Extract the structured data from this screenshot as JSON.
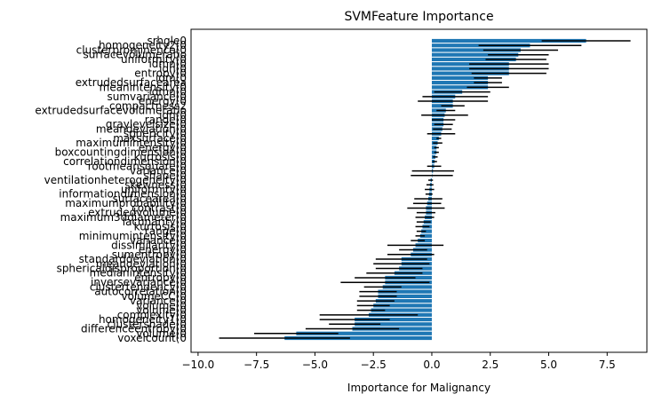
{
  "chart_data": {
    "type": "bar",
    "orientation": "horizontal",
    "title": "SVMFeature Importance",
    "xlabel": "Importance for Malignancy",
    "ylabel": "",
    "xlim": [
      -10.3,
      9.2
    ],
    "xticks": [
      -10.0,
      -7.5,
      -5.0,
      -2.5,
      0.0,
      2.5,
      5.0,
      7.5
    ],
    "xtick_labels": [
      "−10.0",
      "−7.5",
      "−5.0",
      "−2.5",
      "0.0",
      "2.5",
      "5.0",
      "7.5"
    ],
    "bar_color": "#1f77b4",
    "error_color": "#000000",
    "grid": false,
    "categories": [
      "srhgle0",
      "homogeneity2(0",
      "clusterprominence(0",
      "surfacevolumeratio",
      "uniformity(0",
      "idmn(0",
      "idn(0",
      "entropy(0",
      "idm(0",
      "extrudedsurfacearea",
      "meanintensity(0",
      "idmn(0",
      "sumvariance(0",
      "energy(0",
      "compactness2",
      "extrudedsurfacevolumeratio",
      "idn(0",
      "range(0",
      "graylevelsize(0",
      "meandeviation(0",
      "sphericity(0",
      "maxsurface(0",
      "maximumintensity(0",
      "energy(0",
      "boxcountingdimension(0",
      "kurtosis(0",
      "correlationdimension(0",
      "rootmeansquare(0",
      "variance(0",
      "shape(0",
      "ventilationheterogeneity(0",
      "skewness(0",
      "uniformity(0",
      "informationdimension(0",
      "surfacearea(0",
      "maximumprobability(0",
      "contrast(0",
      "extrudedvolume(0",
      "maximum3ddiameter(0",
      "lacunarity(0",
      "kurtosis(0",
      "range(0",
      "minimumintensity(0",
      "variance(0",
      "dissimilarity(0",
      "energy(0",
      "sumentropy(0",
      "standarddeviation(0",
      "meandeviation(0",
      "sphericaldisproportion(0",
      "medianintensity(0",
      "entropy(0",
      "inversevariance(0",
      "clustertendency(0",
      "autocorrelation(0",
      "volumeCC(0",
      "variance(0",
      "volume(0",
      "volume(0",
      "complexity(0",
      "homogeneity1(0",
      "clustershade(0",
      "differenceentropy(0",
      "volume(0",
      "voxelcount(0"
    ],
    "values": [
      6.6,
      4.2,
      3.8,
      3.7,
      3.6,
      3.3,
      3.3,
      3.3,
      2.4,
      2.4,
      2.4,
      1.3,
      1.0,
      0.9,
      0.9,
      0.6,
      0.55,
      0.5,
      0.5,
      0.45,
      0.4,
      0.3,
      0.25,
      0.2,
      0.2,
      0.15,
      0.12,
      0.1,
      0.05,
      0.0,
      -0.05,
      -0.08,
      -0.1,
      -0.12,
      -0.15,
      -0.2,
      -0.25,
      -0.25,
      -0.3,
      -0.35,
      -0.4,
      -0.45,
      -0.5,
      -0.6,
      -0.7,
      -0.8,
      -0.9,
      -1.3,
      -1.3,
      -1.4,
      -1.6,
      -2.0,
      -2.0,
      -2.1,
      -2.3,
      -2.3,
      -2.4,
      -2.5,
      -2.6,
      -2.7,
      -3.3,
      -3.3,
      -3.4,
      -5.8,
      -6.3
    ],
    "errors": [
      1.9,
      2.2,
      1.6,
      1.3,
      1.3,
      1.7,
      1.7,
      1.6,
      0.6,
      0.6,
      0.9,
      1.2,
      1.4,
      1.5,
      0.5,
      0.4,
      1.0,
      0.5,
      0.4,
      0.4,
      0.6,
      0.1,
      0.2,
      0.1,
      0.1,
      0.1,
      0.1,
      0.3,
      0.9,
      0.9,
      0.1,
      0.15,
      0.2,
      0.15,
      0.6,
      0.6,
      0.8,
      0.4,
      0.4,
      0.3,
      0.3,
      0.2,
      0.2,
      0.3,
      1.2,
      0.6,
      1.0,
      1.1,
      1.2,
      1.0,
      1.2,
      1.3,
      1.9,
      0.8,
      0.8,
      0.8,
      0.8,
      0.7,
      0.6,
      2.1,
      1.5,
      1.1,
      2.0,
      1.8,
      2.8
    ]
  }
}
